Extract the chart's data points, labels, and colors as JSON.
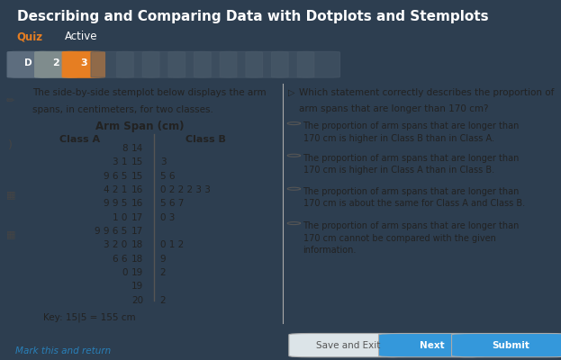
{
  "title": "Describing and Comparing Data with Dotplots and Stemplots",
  "subtitle_quiz": "Quiz",
  "subtitle_active": "Active",
  "bg_color": "#2d3e50",
  "left_text_line1": "The side-by-side stemplot below displays the arm",
  "left_text_line2": "spans, in centimeters, for two classes.",
  "stemplot_title": "Arm Span (cm)",
  "class_a_label": "Class A",
  "class_b_label": "Class B",
  "stems": [
    "14",
    "15",
    "15",
    "16",
    "16",
    "17",
    "17",
    "18",
    "18",
    "19",
    "19",
    "20"
  ],
  "leaves_left": [
    "8",
    "3 1",
    "9 6 5",
    "4 2 1",
    "9 9 5",
    "1 0",
    "9 9 6 5",
    "3 2 0",
    "6 6",
    "0",
    "",
    ""
  ],
  "leaves_right": [
    "",
    "3",
    "5 6",
    "0 2 2 2 3 3",
    "5 6 7",
    "0 3",
    "",
    "0 1 2",
    "9",
    "2",
    "",
    "2"
  ],
  "key_text": "Key: 15|5 = 155 cm",
  "right_question_line1": "Which statement correctly describes the proportion of",
  "right_question_line2": "arm spans that are longer than 170 cm?",
  "options": [
    "The proportion of arm spans that are longer than\n170 cm is higher in Class B than in Class A.",
    "The proportion of arm spans that are longer than\n170 cm is higher in Class A than in Class B.",
    "The proportion of arm spans that are longer than\n170 cm is about the same for Class A and Class B.",
    "The proportion of arm spans that are longer than\n170 cm cannot be compared with the given\ninformation."
  ],
  "button_save": "Save and Exit",
  "button_next": "Next",
  "button_submit": "Submit",
  "link_text": "Mark this and return",
  "header_bg": "#2d3e50",
  "content_bg": "#dce4e8",
  "tab1_color": "#5d6d7e",
  "tab2_color": "#7f8c8d",
  "tab3_color": "#e67e22",
  "tab_dim_color": "#4a5a6a",
  "left_strip_color": "#c8d4db",
  "divider_color": "#aaaaaa",
  "text_color": "#222222",
  "link_color": "#2980b9",
  "btn_save_bg": "#dce4e8",
  "btn_save_fg": "#555555",
  "btn_next_bg": "#3498db",
  "btn_fg": "#ffffff",
  "btn_submit_bg": "#3498db",
  "radio_color": "#555555",
  "stem_line_color": "#555555"
}
